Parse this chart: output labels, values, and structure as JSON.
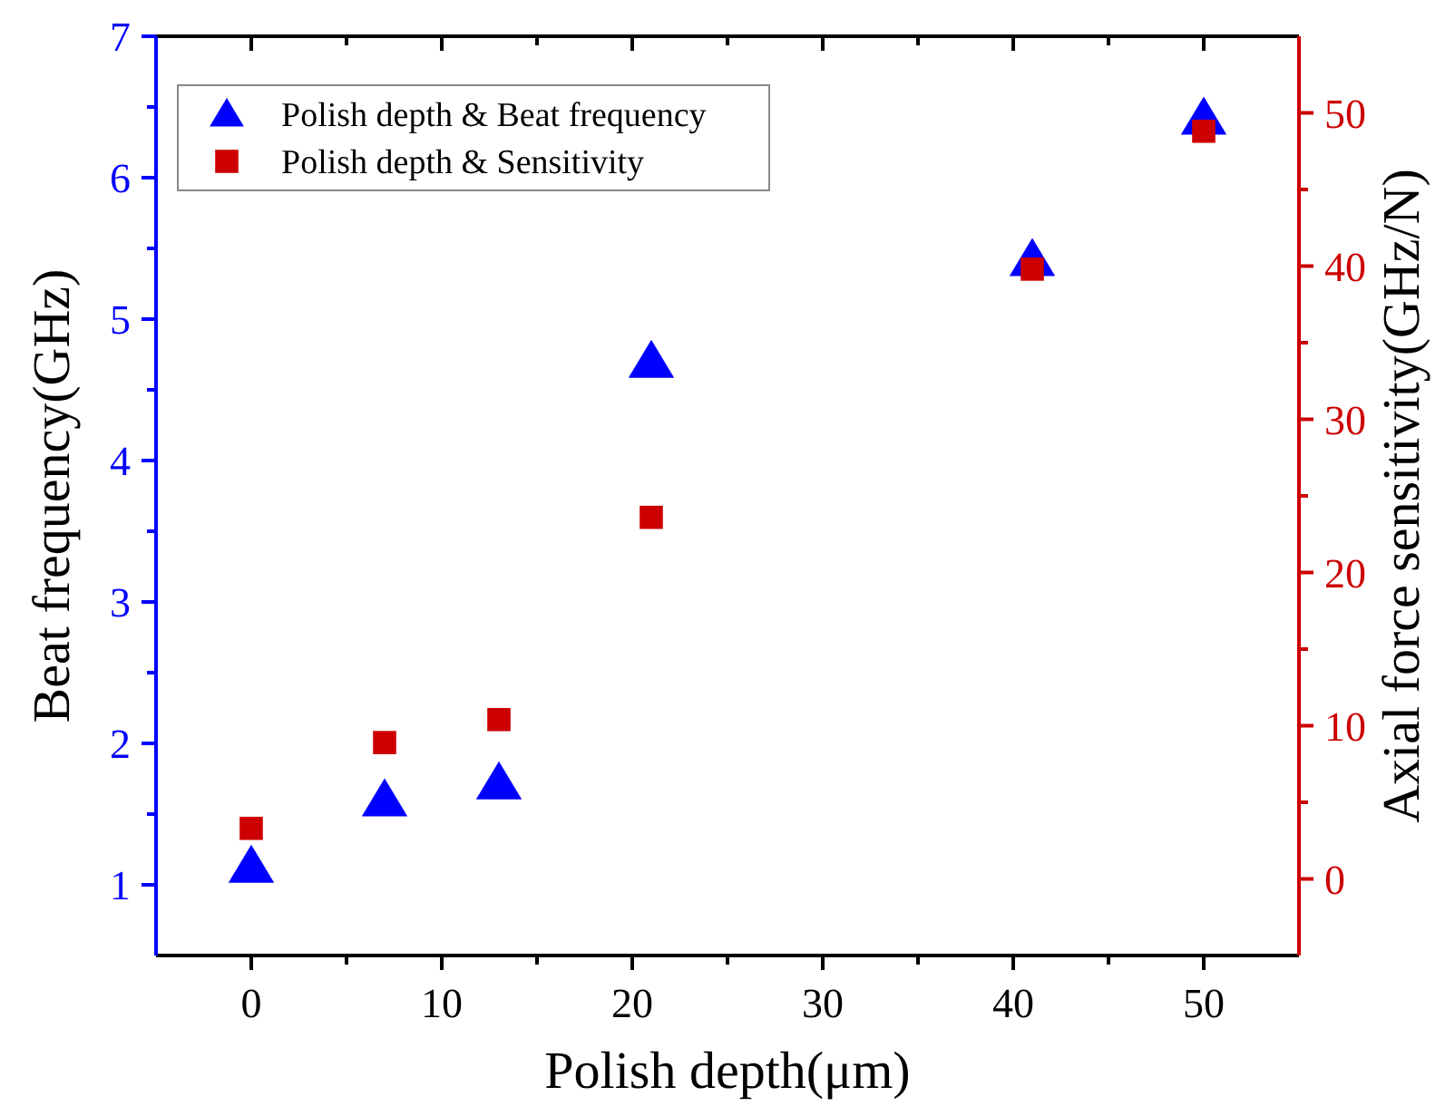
{
  "chart_data": {
    "type": "scatter",
    "xlabel": "Polish depth(μm)",
    "ylabel": "Beat frequency(GHz)",
    "y2label": "Axial force sensitivity(GHz/N)",
    "xlim": [
      -5,
      55
    ],
    "xticks": [
      0,
      {
        "value": 5,
        "label": null
      },
      10,
      {
        "value": 15,
        "label": null
      },
      20,
      {
        "value": 25,
        "label": null
      },
      30,
      {
        "value": 35,
        "label": null
      },
      40,
      {
        "value": 45,
        "label": null
      },
      50
    ],
    "ylim": [
      0.5,
      7
    ],
    "yticks": [
      1,
      {
        "value": 1.5,
        "label": null
      },
      2,
      {
        "value": 2.5,
        "label": null
      },
      3,
      {
        "value": 3.5,
        "label": null
      },
      4,
      {
        "value": 4.5,
        "label": null
      },
      5,
      {
        "value": 5.5,
        "label": null
      },
      6,
      {
        "value": 6.5,
        "label": null
      },
      7
    ],
    "y2lim": [
      -5,
      55
    ],
    "y2ticks": [
      0,
      {
        "value": 5,
        "label": null
      },
      10,
      {
        "value": 15,
        "label": null
      },
      20,
      {
        "value": 25,
        "label": null
      },
      30,
      {
        "value": 35,
        "label": null
      },
      40,
      {
        "value": 45,
        "label": null
      },
      50
    ],
    "x": [
      0,
      7,
      13,
      21,
      41,
      50
    ],
    "series": [
      {
        "name": "Polish depth & Beat frequency",
        "color": "#0000ff",
        "marker": "triangle",
        "values": [
          1.13,
          1.6,
          1.72,
          4.7,
          5.42,
          6.42
        ]
      },
      {
        "name": "Polish depth & Sensitivity",
        "color": "#cc0000",
        "marker": "square",
        "axis": "y2",
        "values": [
          3.3,
          8.9,
          10.4,
          23.6,
          39.8,
          48.8
        ]
      }
    ],
    "legend": "top left",
    "grid": false
  }
}
